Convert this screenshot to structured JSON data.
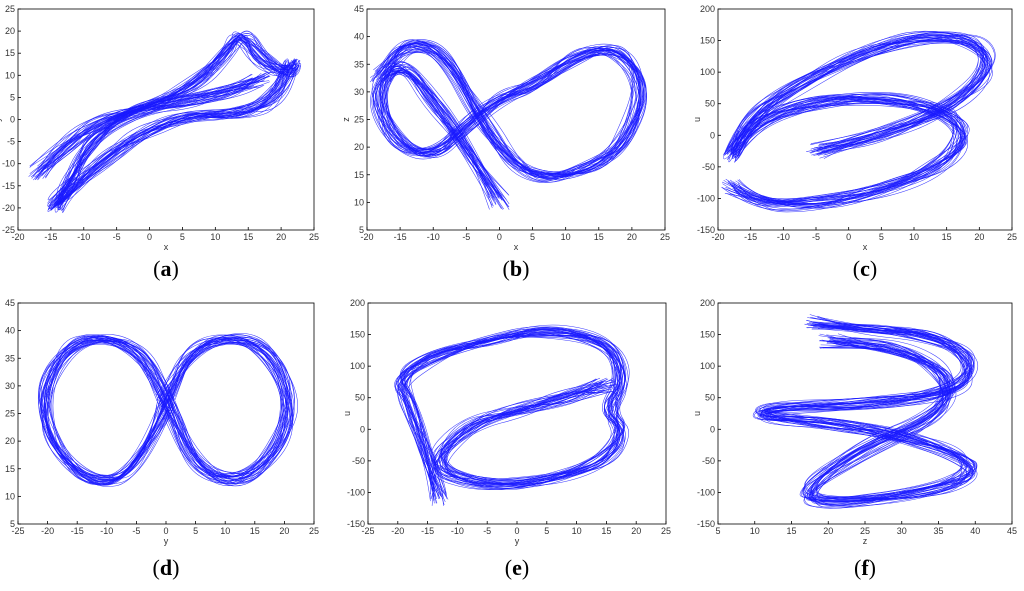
{
  "colors": {
    "trace": "#1a1aff"
  },
  "chart_data": [
    {
      "type": "line",
      "caption": {
        "open": "(",
        "letter": "a",
        "close": ")"
      },
      "xlabel": "x",
      "ylabel": "y",
      "xlim": [
        -20,
        25
      ],
      "ylim": [
        -25,
        25
      ],
      "xticks": [
        -20,
        -15,
        -10,
        -5,
        0,
        5,
        10,
        15,
        20,
        25
      ],
      "yticks": [
        -25,
        -20,
        -15,
        -10,
        -5,
        0,
        5,
        10,
        15,
        20,
        25
      ],
      "grid": false,
      "series": [
        {
          "values": [
            [
              -17,
              -12
            ],
            [
              -13,
              -6
            ],
            [
              -7,
              0
            ],
            [
              0,
              3
            ],
            [
              7,
              8
            ],
            [
              12,
              16
            ],
            [
              14,
              20
            ],
            [
              17,
              13
            ],
            [
              21,
              10
            ],
            [
              22,
              14
            ],
            [
              19,
              4
            ],
            [
              13,
              1
            ],
            [
              6,
              1
            ],
            [
              -1,
              -3
            ],
            [
              -7,
              -9
            ],
            [
              -13,
              -17
            ],
            [
              -15,
              -21
            ],
            [
              -12,
              -14
            ],
            [
              -9,
              -5
            ],
            [
              -3,
              2
            ],
            [
              5,
              4
            ],
            [
              12,
              6
            ],
            [
              17,
              9
            ]
          ]
        }
      ]
    },
    {
      "type": "line",
      "caption": {
        "open": "(",
        "letter": "b",
        "close": ")"
      },
      "xlabel": "x",
      "ylabel": "z",
      "xlim": [
        -20,
        25
      ],
      "ylim": [
        5,
        45
      ],
      "xticks": [
        -20,
        -15,
        -10,
        -5,
        0,
        5,
        10,
        15,
        20,
        25
      ],
      "yticks": [
        5,
        10,
        15,
        20,
        25,
        30,
        35,
        40,
        45
      ],
      "grid": false,
      "series": [
        {
          "values": [
            [
              0,
              10
            ],
            [
              -5,
              20
            ],
            [
              -10,
              28
            ],
            [
              -15,
              36
            ],
            [
              -19,
              30
            ],
            [
              -16,
              21
            ],
            [
              -10,
              18
            ],
            [
              -5,
              24
            ],
            [
              0,
              29
            ],
            [
              5,
              31
            ],
            [
              12,
              37
            ],
            [
              18,
              38
            ],
            [
              22,
              31
            ],
            [
              19,
              21
            ],
            [
              14,
              16
            ],
            [
              7,
              14
            ],
            [
              2,
              17
            ],
            [
              -2,
              24
            ],
            [
              -8,
              37
            ],
            [
              -14,
              39
            ],
            [
              -18,
              33
            ]
          ]
        }
      ]
    },
    {
      "type": "line",
      "caption": {
        "open": "(",
        "letter": "c",
        "close": ")"
      },
      "xlabel": "x",
      "ylabel": "u",
      "xlim": [
        -20,
        25
      ],
      "ylim": [
        -150,
        200
      ],
      "xticks": [
        -20,
        -15,
        -10,
        -5,
        0,
        5,
        10,
        15,
        20,
        25
      ],
      "yticks": [
        -150,
        -100,
        -50,
        0,
        50,
        100,
        150,
        200
      ],
      "grid": false,
      "series": [
        {
          "values": [
            [
              -18,
              -80
            ],
            [
              -14,
              -110
            ],
            [
              -5,
              -110
            ],
            [
              5,
              -90
            ],
            [
              14,
              -50
            ],
            [
              18,
              0
            ],
            [
              15,
              40
            ],
            [
              5,
              60
            ],
            [
              -5,
              55
            ],
            [
              -15,
              20
            ],
            [
              -19,
              -50
            ],
            [
              -15,
              30
            ],
            [
              -8,
              80
            ],
            [
              2,
              130
            ],
            [
              12,
              160
            ],
            [
              20,
              150
            ],
            [
              22,
              100
            ],
            [
              15,
              40
            ],
            [
              5,
              0
            ],
            [
              -5,
              -25
            ]
          ]
        }
      ]
    },
    {
      "type": "line",
      "caption": {
        "open": "(",
        "letter": "d",
        "close": ")"
      },
      "xlabel": "y",
      "ylabel": "z",
      "xlim": [
        -25,
        25
      ],
      "ylim": [
        5,
        45
      ],
      "xticks": [
        -25,
        -20,
        -15,
        -10,
        -5,
        0,
        5,
        10,
        15,
        20,
        25
      ],
      "yticks": [
        5,
        10,
        15,
        20,
        25,
        30,
        35,
        40,
        45
      ],
      "grid": false,
      "series": [
        {
          "values": [
            [
              0,
              27
            ],
            [
              -5,
              14
            ],
            [
              -13,
              12
            ],
            [
              -20,
              20
            ],
            [
              -21,
              30
            ],
            [
              -15,
              39
            ],
            [
              -5,
              38
            ],
            [
              0,
              28
            ],
            [
              5,
              15
            ],
            [
              13,
              12
            ],
            [
              20,
              20
            ],
            [
              21,
              30
            ],
            [
              15,
              39
            ],
            [
              5,
              38
            ],
            [
              0,
              27
            ]
          ]
        }
      ]
    },
    {
      "type": "line",
      "caption": {
        "open": "(",
        "letter": "e",
        "close": ")"
      },
      "xlabel": "y",
      "ylabel": "u",
      "xlim": [
        -25,
        25
      ],
      "ylim": [
        -150,
        200
      ],
      "xticks": [
        -25,
        -20,
        -15,
        -10,
        -5,
        0,
        5,
        10,
        15,
        20,
        25
      ],
      "yticks": [
        -150,
        -100,
        -50,
        0,
        50,
        100,
        150,
        200
      ],
      "grid": false,
      "series": [
        {
          "values": [
            [
              -13,
              -110
            ],
            [
              -14,
              -60
            ],
            [
              -18,
              40
            ],
            [
              -20,
              80
            ],
            [
              -14,
              120
            ],
            [
              -5,
              140
            ],
            [
              5,
              160
            ],
            [
              15,
              140
            ],
            [
              18,
              80
            ],
            [
              15,
              30
            ],
            [
              18,
              0
            ],
            [
              15,
              -50
            ],
            [
              5,
              -80
            ],
            [
              -5,
              -90
            ],
            [
              -15,
              -60
            ],
            [
              -8,
              10
            ],
            [
              0,
              30
            ],
            [
              8,
              50
            ],
            [
              15,
              70
            ]
          ]
        }
      ]
    },
    {
      "type": "line",
      "caption": {
        "open": "(",
        "letter": "f",
        "close": ")"
      },
      "xlabel": "z",
      "ylabel": "u",
      "xlim": [
        5,
        45
      ],
      "ylim": [
        -150,
        200
      ],
      "xticks": [
        5,
        10,
        15,
        20,
        25,
        30,
        35,
        40,
        45
      ],
      "yticks": [
        -150,
        -100,
        -50,
        0,
        50,
        100,
        150,
        200
      ],
      "grid": false,
      "series": [
        {
          "values": [
            [
              18,
              170
            ],
            [
              25,
              160
            ],
            [
              34,
              150
            ],
            [
              40,
              110
            ],
            [
              38,
              60
            ],
            [
              25,
              40
            ],
            [
              12,
              35
            ],
            [
              10,
              20
            ],
            [
              20,
              10
            ],
            [
              30,
              -10
            ],
            [
              38,
              -40
            ],
            [
              40,
              -70
            ],
            [
              34,
              -100
            ],
            [
              20,
              -120
            ],
            [
              16,
              -100
            ],
            [
              25,
              -30
            ],
            [
              35,
              20
            ],
            [
              37,
              80
            ],
            [
              30,
              130
            ],
            [
              20,
              140
            ]
          ]
        }
      ]
    }
  ]
}
